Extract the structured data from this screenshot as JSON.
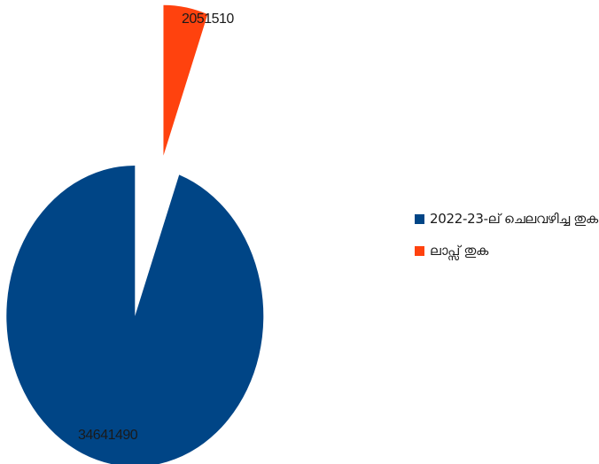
{
  "chart_data": {
    "type": "pie",
    "title": "",
    "categories": [
      "2022-23-ല് ചെലവഴിച്ച തുക",
      "ലാപ്സ് തുക"
    ],
    "values": [
      34641490,
      2051510
    ],
    "data_labels": [
      "34641490",
      "2051510"
    ],
    "colors": [
      "#004586",
      "#ff420e"
    ],
    "exploded": true,
    "legend_position": "right"
  }
}
